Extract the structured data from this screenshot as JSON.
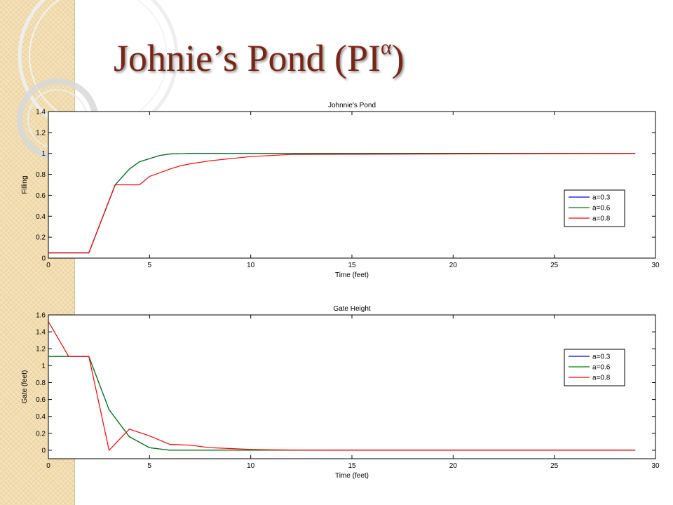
{
  "slide": {
    "title_main": "Johnie’s Pond (PI",
    "title_sup": "α",
    "title_close": ")",
    "colors": {
      "title": "#7a2416",
      "band": "#f2dcae"
    }
  },
  "chart_data": [
    {
      "type": "line",
      "title": "Johnnie's Pond",
      "xlabel": "Time (feet)",
      "ylabel": "Filling",
      "xlim": [
        0,
        30
      ],
      "ylim": [
        0,
        1.4
      ],
      "xticks": [
        0,
        5,
        10,
        15,
        20,
        25,
        30
      ],
      "yticks": [
        0,
        0.2,
        0.4,
        0.6,
        0.8,
        1,
        1.2,
        1.4
      ],
      "legend_position": "right",
      "grid": false,
      "series": [
        {
          "name": "a=0.3",
          "color": "#0000ff",
          "x": [
            0,
            2,
            3.3,
            4,
            4.5,
            5,
            5.5,
            6,
            7,
            8,
            10,
            15,
            29
          ],
          "y": [
            0.05,
            0.05,
            0.7,
            0.85,
            0.92,
            0.95,
            0.98,
            0.995,
            1,
            1,
            1,
            1,
            1
          ]
        },
        {
          "name": "a=0.6",
          "color": "#008000",
          "x": [
            0,
            2,
            3.3,
            4,
            4.5,
            5,
            5.5,
            6,
            7,
            8,
            10,
            15,
            29
          ],
          "y": [
            0.05,
            0.05,
            0.7,
            0.85,
            0.92,
            0.95,
            0.98,
            0.995,
            1,
            1,
            1,
            1,
            1
          ]
        },
        {
          "name": "a=0.8",
          "color": "#ff0000",
          "x": [
            0,
            2,
            3.3,
            4,
            4.5,
            5,
            6,
            6.5,
            7,
            8,
            9,
            10,
            11,
            12,
            29
          ],
          "y": [
            0.05,
            0.05,
            0.7,
            0.7,
            0.7,
            0.78,
            0.85,
            0.88,
            0.9,
            0.93,
            0.95,
            0.97,
            0.98,
            0.99,
            1
          ]
        }
      ]
    },
    {
      "type": "line",
      "title": "Gate Height",
      "xlabel": "Time (feet)",
      "ylabel": "Gate (feet)",
      "xlim": [
        0,
        30
      ],
      "ylim": [
        -0.1,
        1.6
      ],
      "xticks": [
        0,
        5,
        10,
        15,
        20,
        25,
        30
      ],
      "yticks": [
        0,
        0.2,
        0.4,
        0.6,
        0.8,
        1,
        1.2,
        1.4,
        1.6
      ],
      "legend_position": "right",
      "grid": false,
      "series": [
        {
          "name": "a=0.3",
          "color": "#0000ff",
          "x": [
            0,
            2,
            3,
            4,
            5,
            6,
            8,
            10,
            13,
            29
          ],
          "y": [
            1.11,
            1.11,
            0.48,
            0.16,
            0.03,
            0,
            0,
            0,
            0,
            0
          ]
        },
        {
          "name": "a=0.6",
          "color": "#008000",
          "x": [
            0,
            2,
            3,
            4,
            5,
            6,
            8,
            10,
            13,
            29
          ],
          "y": [
            1.11,
            1.11,
            0.48,
            0.16,
            0.03,
            0,
            0,
            0,
            0,
            0
          ]
        },
        {
          "name": "a=0.8",
          "color": "#ff0000",
          "x": [
            0,
            1,
            2,
            3,
            4,
            5,
            6,
            7,
            8,
            9,
            10,
            11,
            13,
            29
          ],
          "y": [
            1.52,
            1.11,
            1.11,
            0,
            0.25,
            0.17,
            0.07,
            0.06,
            0.03,
            0.02,
            0.01,
            0.005,
            0,
            0
          ]
        }
      ]
    }
  ]
}
